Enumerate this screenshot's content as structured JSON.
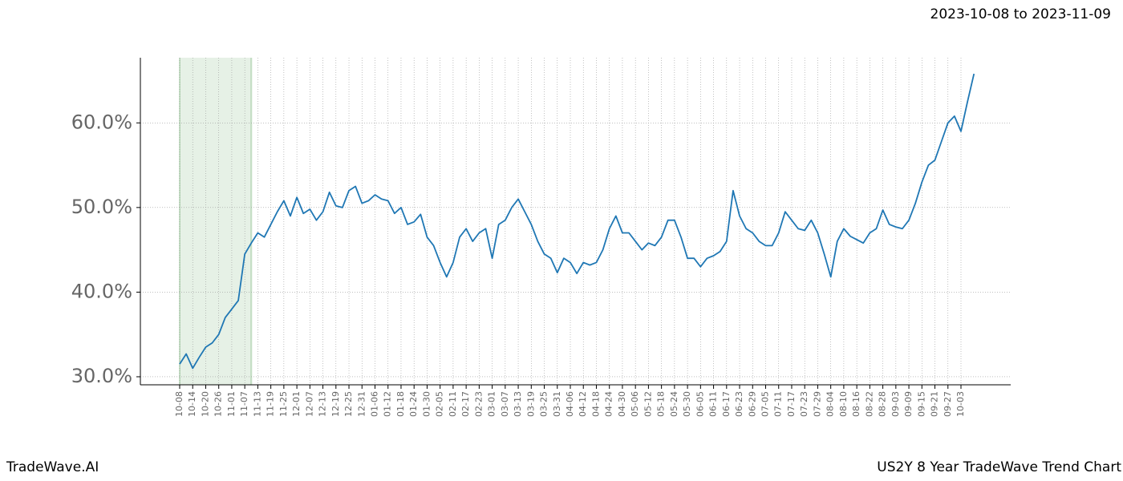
{
  "header": {
    "date_range": "2023-10-08 to 2023-11-09"
  },
  "chart_data": {
    "type": "line",
    "categories": [
      "10-08",
      null,
      "10-14",
      null,
      "10-20",
      null,
      "10-26",
      null,
      "11-01",
      null,
      "11-07",
      null,
      "11-13",
      null,
      "11-19",
      null,
      "11-25",
      null,
      "12-01",
      null,
      "12-07",
      null,
      "12-13",
      null,
      "12-19",
      null,
      "12-25",
      null,
      "12-31",
      null,
      "01-06",
      null,
      "01-12",
      null,
      "01-18",
      null,
      "01-24",
      null,
      "01-30",
      null,
      "02-05",
      null,
      "02-11",
      null,
      "02-17",
      null,
      "02-23",
      null,
      "03-01",
      null,
      "03-07",
      null,
      "03-13",
      null,
      "03-19",
      null,
      "03-25",
      null,
      "03-31",
      null,
      "04-06",
      null,
      "04-12",
      null,
      "04-18",
      null,
      "04-24",
      null,
      "04-30",
      null,
      "05-06",
      null,
      "05-12",
      null,
      "05-18",
      null,
      "05-24",
      null,
      "05-30",
      null,
      "06-05",
      null,
      "06-11",
      null,
      "06-17",
      null,
      "06-23",
      null,
      "06-29",
      null,
      "07-05",
      null,
      "07-11",
      null,
      "07-17",
      null,
      "07-23",
      null,
      "07-29",
      null,
      "08-04",
      null,
      "08-10",
      null,
      "08-16",
      null,
      "08-22",
      null,
      "08-28",
      null,
      "09-03",
      null,
      "09-09",
      null,
      "09-15",
      null,
      "09-21",
      null,
      "09-27",
      null,
      "10-03",
      null,
      null
    ],
    "series": [
      {
        "color": "#1f77b4",
        "values": [
          31.5,
          32.7,
          31.0,
          32.3,
          33.5,
          34.0,
          35.0,
          37.0,
          38.0,
          39.0,
          44.5,
          45.8,
          47.0,
          46.5,
          48.0,
          49.5,
          50.8,
          49.0,
          51.2,
          49.3,
          49.8,
          48.5,
          49.5,
          51.8,
          50.2,
          50.0,
          52.0,
          52.5,
          50.5,
          50.8,
          51.5,
          51.0,
          50.8,
          49.3,
          50.0,
          48.0,
          48.3,
          49.2,
          46.5,
          45.5,
          43.5,
          41.8,
          43.5,
          46.5,
          47.5,
          46.0,
          47.0,
          47.5,
          44.0,
          48.0,
          48.5,
          50.0,
          51.0,
          49.5,
          48.0,
          46.0,
          44.5,
          44.0,
          42.3,
          44.0,
          43.5,
          42.2,
          43.5,
          43.2,
          43.5,
          45.0,
          47.5,
          49.0,
          47.0,
          47.0,
          46.0,
          45.0,
          45.8,
          45.5,
          46.5,
          48.5,
          48.5,
          46.5,
          44.0,
          44.0,
          43.0,
          44.0,
          44.3,
          44.8,
          46.0,
          52.0,
          49.0,
          47.5,
          47.0,
          46.0,
          45.5,
          45.5,
          47.0,
          49.5,
          48.5,
          47.5,
          47.3,
          48.5,
          47.0,
          44.5,
          41.8,
          46.0,
          47.5,
          46.6,
          46.2,
          45.8,
          47.0,
          47.5,
          49.7,
          48.0,
          47.7,
          47.5,
          48.5,
          50.5,
          53.0,
          55.0,
          55.6,
          57.8,
          60.0,
          60.8,
          59.0,
          62.5,
          65.8
        ]
      }
    ],
    "ylim": [
      29.05,
      67.7
    ],
    "yticks": [
      {
        "value": 30,
        "label": "30.0%"
      },
      {
        "value": 40,
        "label": "40.0%"
      },
      {
        "value": 50,
        "label": "50.0%"
      },
      {
        "value": 60,
        "label": "60.0%"
      }
    ],
    "grid": true,
    "highlight": [
      0,
      11
    ],
    "highlight_color": "#2e8b2e"
  },
  "footer": {
    "left": "TradeWave.AI",
    "right": "US2Y 8 Year TradeWave Trend Chart"
  }
}
